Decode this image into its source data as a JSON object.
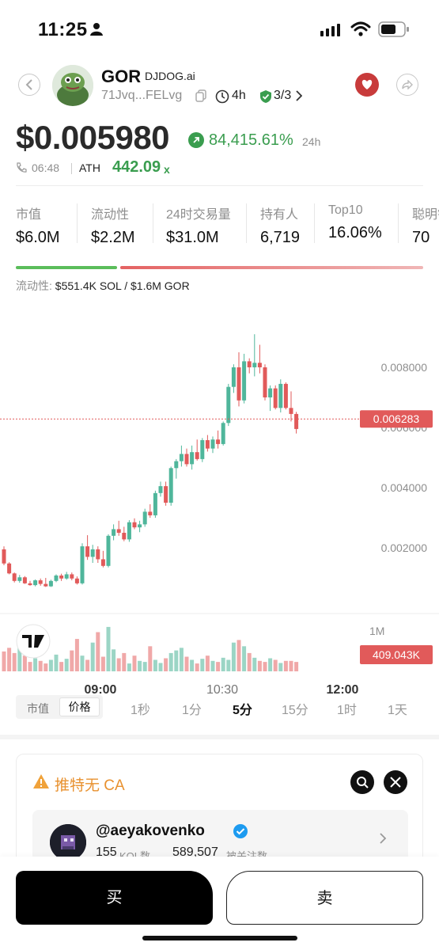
{
  "status_bar": {
    "time": "11:25"
  },
  "header": {
    "ticker": "GOR",
    "domain": "DJDOG.ai",
    "address": "71Jvq...FELvg",
    "age": "4h",
    "audit": "3/3"
  },
  "price": {
    "value": "$0.005980",
    "change": "84,415.61%",
    "change_period": "24h",
    "call_time": "06:48",
    "ath_label": "ATH",
    "ath_value": "442.09",
    "ath_suffix": "x"
  },
  "stats": [
    {
      "label": "市值",
      "value": "$6.0M"
    },
    {
      "label": "流动性",
      "value": "$2.2M"
    },
    {
      "label": "24时交易量",
      "value": "$31.0M"
    },
    {
      "label": "持有人",
      "value": "6,719"
    },
    {
      "label": "Top10",
      "value": "16.06%"
    },
    {
      "label": "聪明钱",
      "value": "70"
    }
  ],
  "liquidity": {
    "label": "流动性:",
    "value": "$551.4K SOL / $1.6M GOR",
    "sol_share": 0.25
  },
  "chart_data": {
    "type": "candlestick",
    "y_ticks": [
      "0.008000",
      "0.006000",
      "0.004000",
      "0.002000"
    ],
    "current_price_label": "0.006283",
    "current_price": 0.006283,
    "volume_tick": "1M",
    "volume_label": "409.043K",
    "x_ticks": [
      "09:00",
      "10:30",
      "12:00"
    ],
    "candles": [
      [
        0.00195,
        0.00205,
        0.00142,
        0.00148
      ],
      [
        0.00148,
        0.00152,
        0.00112,
        0.00115
      ],
      [
        0.00115,
        0.00118,
        0.00085,
        0.0009
      ],
      [
        0.0009,
        0.0011,
        0.00084,
        0.00102
      ],
      [
        0.00102,
        0.00106,
        0.0008,
        0.00082
      ],
      [
        0.00082,
        0.0009,
        0.00074,
        0.00076
      ],
      [
        0.00076,
        0.00095,
        0.00072,
        0.00092
      ],
      [
        0.00092,
        0.00098,
        0.00074,
        0.0008
      ],
      [
        0.0008,
        0.001,
        0.0007,
        0.00072
      ],
      [
        0.00072,
        0.00094,
        0.0007,
        0.0009
      ],
      [
        0.0009,
        0.00112,
        0.00086,
        0.00108
      ],
      [
        0.00108,
        0.00114,
        0.0009,
        0.00098
      ],
      [
        0.00098,
        0.0012,
        0.00094,
        0.00112
      ],
      [
        0.00112,
        0.00118,
        0.00092,
        0.00098
      ],
      [
        0.00098,
        0.00105,
        0.00078,
        0.00082
      ],
      [
        0.00082,
        0.00215,
        0.00078,
        0.00205
      ],
      [
        0.00205,
        0.00242,
        0.0016,
        0.0017
      ],
      [
        0.0017,
        0.0021,
        0.0015,
        0.00195
      ],
      [
        0.00195,
        0.00205,
        0.0015,
        0.00162
      ],
      [
        0.00162,
        0.0019,
        0.00135,
        0.0014
      ],
      [
        0.0014,
        0.00245,
        0.00135,
        0.0024
      ],
      [
        0.0024,
        0.00278,
        0.00225,
        0.00262
      ],
      [
        0.00262,
        0.0029,
        0.0024,
        0.0025
      ],
      [
        0.0025,
        0.0027,
        0.00222,
        0.00228
      ],
      [
        0.00228,
        0.00292,
        0.0022,
        0.00285
      ],
      [
        0.00285,
        0.00298,
        0.00262,
        0.00268
      ],
      [
        0.00268,
        0.0029,
        0.00252,
        0.00278
      ],
      [
        0.00278,
        0.0033,
        0.0027,
        0.0032
      ],
      [
        0.0032,
        0.00345,
        0.003,
        0.00308
      ],
      [
        0.00308,
        0.0039,
        0.003,
        0.00382
      ],
      [
        0.00382,
        0.0042,
        0.0037,
        0.00405
      ],
      [
        0.00405,
        0.0042,
        0.0034,
        0.0035
      ],
      [
        0.0035,
        0.0047,
        0.0034,
        0.00465
      ],
      [
        0.00465,
        0.00495,
        0.0043,
        0.00488
      ],
      [
        0.00488,
        0.0054,
        0.0047,
        0.00512
      ],
      [
        0.00512,
        0.0053,
        0.0047,
        0.00478
      ],
      [
        0.00478,
        0.0054,
        0.0046,
        0.00518
      ],
      [
        0.00518,
        0.0056,
        0.0049,
        0.00495
      ],
      [
        0.00495,
        0.00565,
        0.00485,
        0.00558
      ],
      [
        0.00558,
        0.00575,
        0.0052,
        0.0053
      ],
      [
        0.0053,
        0.0057,
        0.00515,
        0.0056
      ],
      [
        0.0056,
        0.0059,
        0.0053,
        0.00545
      ],
      [
        0.00545,
        0.0062,
        0.0054,
        0.00615
      ],
      [
        0.00615,
        0.00745,
        0.00605,
        0.00735
      ],
      [
        0.00735,
        0.0081,
        0.00715,
        0.008
      ],
      [
        0.008,
        0.0085,
        0.0067,
        0.0069
      ],
      [
        0.0069,
        0.00845,
        0.0068,
        0.0082
      ],
      [
        0.0082,
        0.0083,
        0.0078,
        0.008
      ],
      [
        0.008,
        0.0091,
        0.0077,
        0.00815
      ],
      [
        0.00815,
        0.00875,
        0.0078,
        0.008
      ],
      [
        0.008,
        0.0081,
        0.0069,
        0.007
      ],
      [
        0.007,
        0.0074,
        0.00655,
        0.0073
      ],
      [
        0.0073,
        0.0074,
        0.0066,
        0.00665
      ],
      [
        0.00665,
        0.0076,
        0.0065,
        0.00745
      ],
      [
        0.00745,
        0.0075,
        0.0066,
        0.00665
      ],
      [
        0.00665,
        0.0072,
        0.0062,
        0.00645
      ],
      [
        0.00645,
        0.00652,
        0.0058,
        0.00595
      ]
    ],
    "volumes": [
      0.38,
      0.45,
      0.35,
      0.55,
      0.3,
      0.18,
      0.25,
      0.2,
      0.15,
      0.22,
      0.32,
      0.18,
      0.24,
      0.4,
      0.62,
      0.3,
      0.22,
      0.55,
      0.75,
      0.28,
      0.85,
      0.42,
      0.25,
      0.35,
      0.15,
      0.3,
      0.2,
      0.18,
      0.48,
      0.22,
      0.16,
      0.25,
      0.35,
      0.4,
      0.45,
      0.28,
      0.22,
      0.15,
      0.24,
      0.3,
      0.2,
      0.18,
      0.26,
      0.22,
      0.55,
      0.6,
      0.48,
      0.35,
      0.26,
      0.2,
      0.18,
      0.25,
      0.22,
      0.16,
      0.2,
      0.2,
      0.18
    ]
  },
  "timeframes": {
    "toggle": [
      "市值",
      "价格"
    ],
    "options": [
      "1秒",
      "1分",
      "5分",
      "15分",
      "1时",
      "1天"
    ],
    "active": "5分"
  },
  "ca_card": {
    "warning": "推特无 CA",
    "kol": {
      "handle": "@aeyakovenko",
      "kol_count": "155",
      "kol_label": "KOL数",
      "followers": "589,507",
      "followers_label": "被关注数"
    }
  },
  "actions": {
    "buy": "买",
    "sell": "卖"
  },
  "colors": {
    "up": "#4fb69b",
    "down": "#e15a5a",
    "up_text": "#3a9d4f",
    "accent": "#c83b3b"
  }
}
